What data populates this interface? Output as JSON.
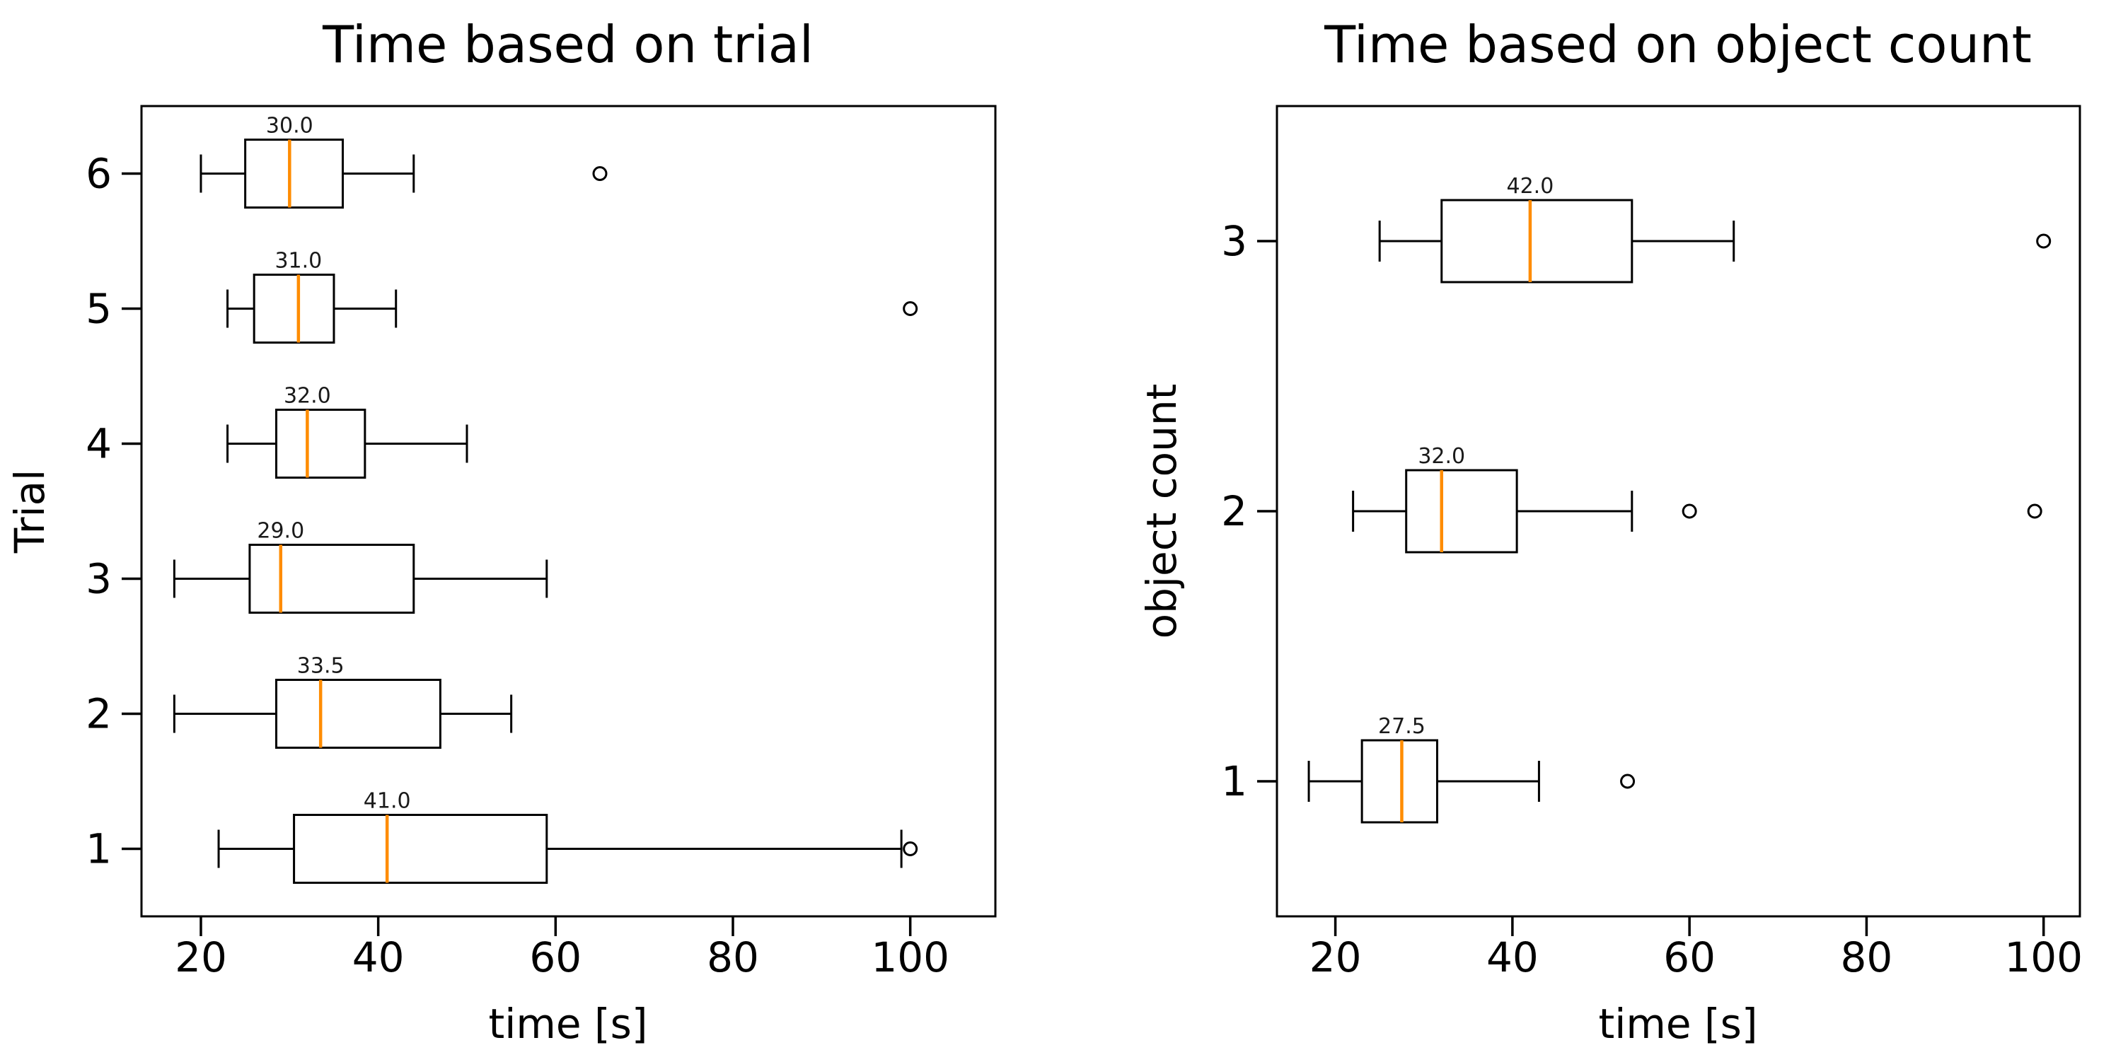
{
  "figure": {
    "background": "#ffffff"
  },
  "colors": {
    "axis": "#000000",
    "box_stroke": "#000000",
    "median_line": "#ff8c00",
    "annotation_text": "#1a1a1a",
    "outlier_stroke": "#000000"
  },
  "chart_data": [
    {
      "type": "boxplot",
      "orientation": "horizontal",
      "title": "Time based on trial",
      "xlabel": "time [s]",
      "ylabel": "Trial",
      "x_ticks": [
        20,
        40,
        60,
        80,
        100
      ],
      "x_domain": [
        13.3,
        109.6
      ],
      "grid": false,
      "rows": [
        {
          "category": "6",
          "whisker_low": 20,
          "q1": 25,
          "median": 30,
          "q3": 36,
          "whisker_high": 44,
          "outliers": [
            65
          ],
          "median_label": "30.0"
        },
        {
          "category": "5",
          "whisker_low": 23,
          "q1": 26,
          "median": 31,
          "q3": 35,
          "whisker_high": 42,
          "outliers": [
            100
          ],
          "median_label": "31.0"
        },
        {
          "category": "4",
          "whisker_low": 23,
          "q1": 28.5,
          "median": 32,
          "q3": 38.5,
          "whisker_high": 50,
          "outliers": [],
          "median_label": "32.0"
        },
        {
          "category": "3",
          "whisker_low": 17,
          "q1": 25.5,
          "median": 29,
          "q3": 44,
          "whisker_high": 59,
          "outliers": [],
          "median_label": "29.0"
        },
        {
          "category": "2",
          "whisker_low": 17,
          "q1": 28.5,
          "median": 33.5,
          "q3": 47,
          "whisker_high": 55,
          "outliers": [],
          "median_label": "33.5"
        },
        {
          "category": "1",
          "whisker_low": 22,
          "q1": 30.5,
          "median": 41,
          "q3": 59,
          "whisker_high": 99,
          "outliers": [
            100
          ],
          "median_label": "41.0"
        }
      ]
    },
    {
      "type": "boxplot",
      "orientation": "horizontal",
      "title": "Time based on object count",
      "xlabel": "time [s]",
      "ylabel": "object count",
      "x_ticks": [
        20,
        40,
        60,
        80,
        100
      ],
      "x_domain": [
        13.4,
        104.1
      ],
      "grid": false,
      "rows": [
        {
          "category": "3",
          "whisker_low": 25,
          "q1": 32,
          "median": 42,
          "q3": 53.5,
          "whisker_high": 65,
          "outliers": [
            100
          ],
          "median_label": "42.0"
        },
        {
          "category": "2",
          "whisker_low": 22,
          "q1": 28,
          "median": 32,
          "q3": 40.5,
          "whisker_high": 53.5,
          "outliers": [
            60,
            99
          ],
          "median_label": "32.0"
        },
        {
          "category": "1",
          "whisker_low": 17,
          "q1": 23,
          "median": 27.5,
          "q3": 31.5,
          "whisker_high": 43,
          "outliers": [
            53
          ],
          "median_label": "27.5"
        }
      ]
    }
  ]
}
